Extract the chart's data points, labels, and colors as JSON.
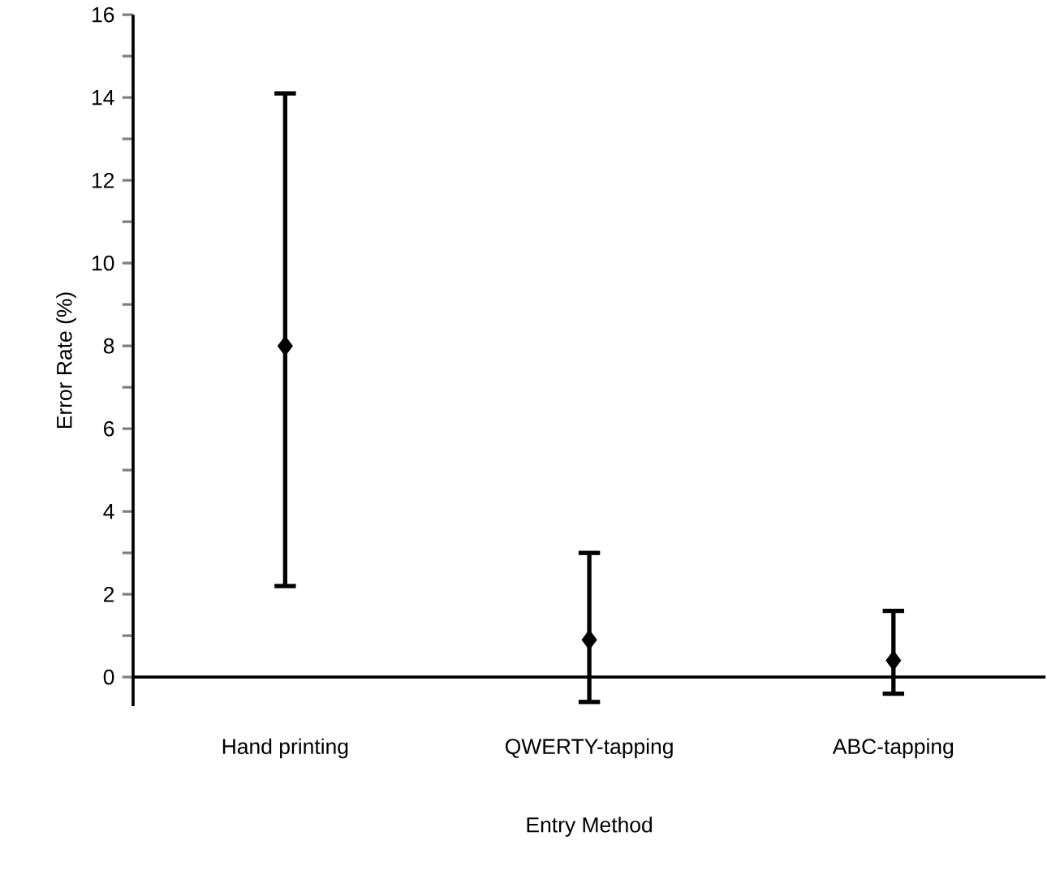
{
  "chart_data": {
    "type": "scatter",
    "xlabel": "Entry Method",
    "ylabel": "Error Rate (%)",
    "categories": [
      "Hand printing",
      "QWERTY-tapping",
      "ABC-tapping"
    ],
    "values": [
      8.0,
      0.9,
      0.4
    ],
    "errors": [
      [
        2.2,
        14.1
      ],
      [
        -0.6,
        3.0
      ],
      [
        -0.4,
        1.6
      ]
    ],
    "color": "#000000",
    "marker": "diamond",
    "grid": false,
    "ylim": [
      -0.7,
      16
    ],
    "yticks": [
      0,
      {
        "value": 1,
        "label": null
      },
      2,
      {
        "value": 3,
        "label": null
      },
      4,
      {
        "value": 5,
        "label": null
      },
      6,
      {
        "value": 7,
        "label": null
      },
      8,
      {
        "value": 9,
        "label": null
      },
      10,
      {
        "value": 11,
        "label": null
      },
      12,
      {
        "value": 13,
        "label": null
      },
      14,
      {
        "value": 15,
        "label": null
      },
      16
    ]
  }
}
